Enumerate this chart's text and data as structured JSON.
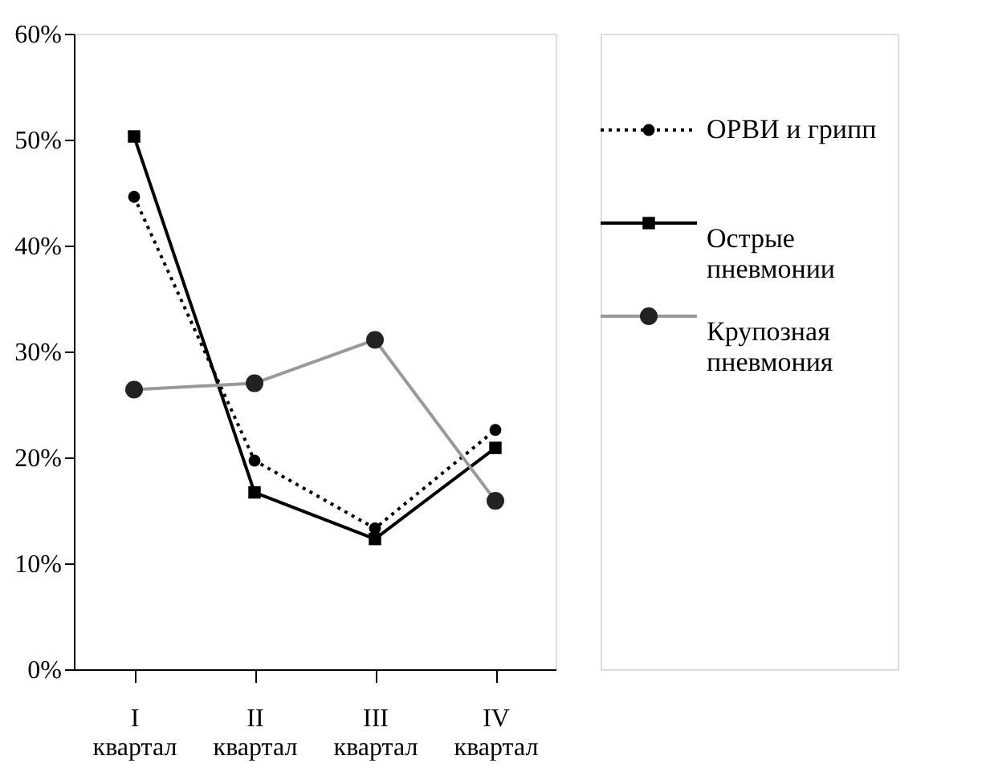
{
  "chart_data": {
    "type": "line",
    "categories": [
      "I\nквартал",
      "II\nквартал",
      "III\nквартал",
      "IV\nквартал"
    ],
    "series": [
      {
        "name": "ОРВИ и грипп",
        "color": "#000000",
        "marker": "circle",
        "line_style": "dotted",
        "values": [
          44.6,
          19.7,
          13.3,
          22.6
        ]
      },
      {
        "name": "Острые пневмонии",
        "color": "#000000",
        "marker": "square",
        "line_style": "solid",
        "values": [
          50.3,
          16.7,
          12.3,
          20.9
        ]
      },
      {
        "name": "Крупозная пневмония",
        "color": "#999999",
        "marker": "circle",
        "line_style": "solid",
        "values": [
          26.4,
          27.0,
          31.1,
          15.9
        ]
      }
    ],
    "ylim": [
      0,
      60
    ],
    "yticks": [
      {
        "value": 0,
        "label": "0%"
      },
      {
        "value": 10,
        "label": "10%"
      },
      {
        "value": 20,
        "label": "20%"
      },
      {
        "value": 30,
        "label": "30%"
      },
      {
        "value": 40,
        "label": "40%"
      },
      {
        "value": 50,
        "label": "50%"
      },
      {
        "value": 60,
        "label": "60%"
      }
    ],
    "grid": false,
    "legend": "right"
  }
}
